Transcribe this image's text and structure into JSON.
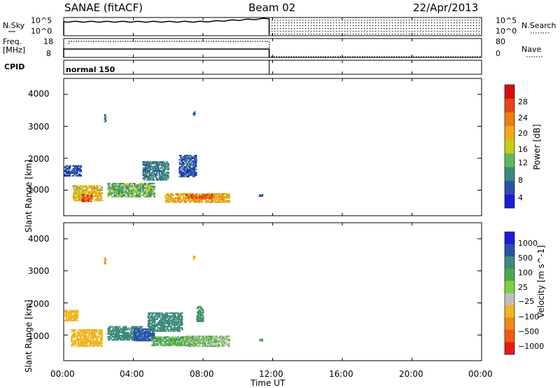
{
  "header": {
    "title": "SANAE (fitACF)",
    "beam": "Beam 02",
    "date": "22/Apr/2013"
  },
  "colors": {
    "power_scale": [
      "#1c1cdc",
      "#2a52a8",
      "#3e8a7a",
      "#5cb85c",
      "#c8cc14",
      "#f0a81e",
      "#f07a14",
      "#e8441a",
      "#d80c0c"
    ],
    "velocity_scale": [
      "#1c1cdc",
      "#2a52a8",
      "#3e8a7a",
      "#4ca84c",
      "#7ed03c",
      "#bebebe",
      "#f0b41e",
      "#f08a14",
      "#f05a14",
      "#e81c14"
    ]
  },
  "panels": {
    "nsky": {
      "label": "N.Sky",
      "left_ticks": [
        "10^5",
        "10^0"
      ],
      "right_ticks": [
        "10^5",
        "10^0"
      ],
      "right_label": "N.Search"
    },
    "freq": {
      "label_lines": [
        "Freq.",
        "[MHz]"
      ],
      "left_ticks": [
        "18",
        "8"
      ],
      "right_ticks": [
        "80",
        "0"
      ],
      "right_label": "Nave"
    },
    "cpid": {
      "label": "CPID",
      "mode": "normal 150"
    }
  },
  "chart_data": [
    {
      "type": "heatmap",
      "title": "",
      "ylabel": "Slant Range [km]",
      "ylim": [
        200,
        4500
      ],
      "y_ticks": [
        "1000",
        "2000",
        "3000",
        "4000"
      ],
      "x_ticks": [
        "00:00",
        "04:00",
        "08:00",
        "12:00",
        "16:00",
        "20:00",
        "00:00"
      ],
      "colorbar_label": "Power [dB]",
      "colorbar_ticks": [
        "4",
        "8",
        "12",
        "16",
        "20",
        "24",
        "28"
      ],
      "colorbar_range": [
        0,
        32
      ],
      "echo_regions": [
        {
          "t_start": 0.0,
          "t_end": 1.0,
          "r_center": 1650,
          "r_width": 350,
          "value": 5
        },
        {
          "t_start": 0.5,
          "t_end": 2.2,
          "r_center": 950,
          "r_width": 500,
          "value": 18
        },
        {
          "t_start": 1.0,
          "t_end": 1.6,
          "r_center": 800,
          "r_width": 250,
          "value": 26
        },
        {
          "t_start": 2.5,
          "t_end": 5.2,
          "r_center": 1050,
          "r_width": 450,
          "value": 12
        },
        {
          "t_start": 4.5,
          "t_end": 6.0,
          "r_center": 1650,
          "r_width": 600,
          "value": 8
        },
        {
          "t_start": 5.8,
          "t_end": 9.5,
          "r_center": 800,
          "r_width": 300,
          "value": 20
        },
        {
          "t_start": 7.0,
          "t_end": 8.5,
          "r_center": 850,
          "r_width": 150,
          "value": 26
        },
        {
          "t_start": 6.6,
          "t_end": 7.6,
          "r_center": 1800,
          "r_width": 700,
          "value": 6
        },
        {
          "t_start": 2.3,
          "t_end": 2.4,
          "r_center": 3300,
          "r_width": 250,
          "value": 8
        },
        {
          "t_start": 7.4,
          "t_end": 7.5,
          "r_center": 3450,
          "r_width": 150,
          "value": 6
        },
        {
          "t_start": 11.2,
          "t_end": 11.4,
          "r_center": 880,
          "r_width": 80,
          "value": 4
        }
      ]
    },
    {
      "type": "heatmap",
      "title": "",
      "ylabel": "Slant Range [km]",
      "xlabel": "Time UT",
      "ylim": [
        200,
        4500
      ],
      "y_ticks": [
        "1000",
        "2000",
        "3000",
        "4000"
      ],
      "x_ticks": [
        "00:00",
        "04:00",
        "08:00",
        "12:00",
        "16:00",
        "20:00",
        "00:00"
      ],
      "colorbar_label": "Velocity [m s^-1]",
      "colorbar_ticks": [
        "1000",
        "500",
        "100",
        "25",
        "−25",
        "−100",
        "−500",
        "−1000"
      ],
      "echo_regions": [
        {
          "t_start": 0.0,
          "t_end": 0.8,
          "r_center": 1650,
          "r_width": 350,
          "value": -300
        },
        {
          "t_start": 0.4,
          "t_end": 2.2,
          "r_center": 950,
          "r_width": 550,
          "value": -400
        },
        {
          "t_start": 2.5,
          "t_end": 4.5,
          "r_center": 1100,
          "r_width": 450,
          "value": 300
        },
        {
          "t_start": 4.0,
          "t_end": 5.2,
          "r_center": 1050,
          "r_width": 400,
          "value": 600
        },
        {
          "t_start": 4.8,
          "t_end": 6.8,
          "r_center": 1450,
          "r_width": 600,
          "value": 200
        },
        {
          "t_start": 5.0,
          "t_end": 7.5,
          "r_center": 850,
          "r_width": 300,
          "value": 60
        },
        {
          "t_start": 7.0,
          "t_end": 9.5,
          "r_center": 850,
          "r_width": 350,
          "value": 0
        },
        {
          "t_start": 7.6,
          "t_end": 8.0,
          "r_center": 1700,
          "r_width": 500,
          "value": 120
        },
        {
          "t_start": 2.3,
          "t_end": 2.4,
          "r_center": 3350,
          "r_width": 200,
          "value": -800
        },
        {
          "t_start": 7.4,
          "t_end": 7.5,
          "r_center": 3450,
          "r_width": 120,
          "value": -200
        },
        {
          "t_start": 11.2,
          "t_end": 11.4,
          "r_center": 880,
          "r_width": 80,
          "value": 40
        }
      ]
    }
  ]
}
